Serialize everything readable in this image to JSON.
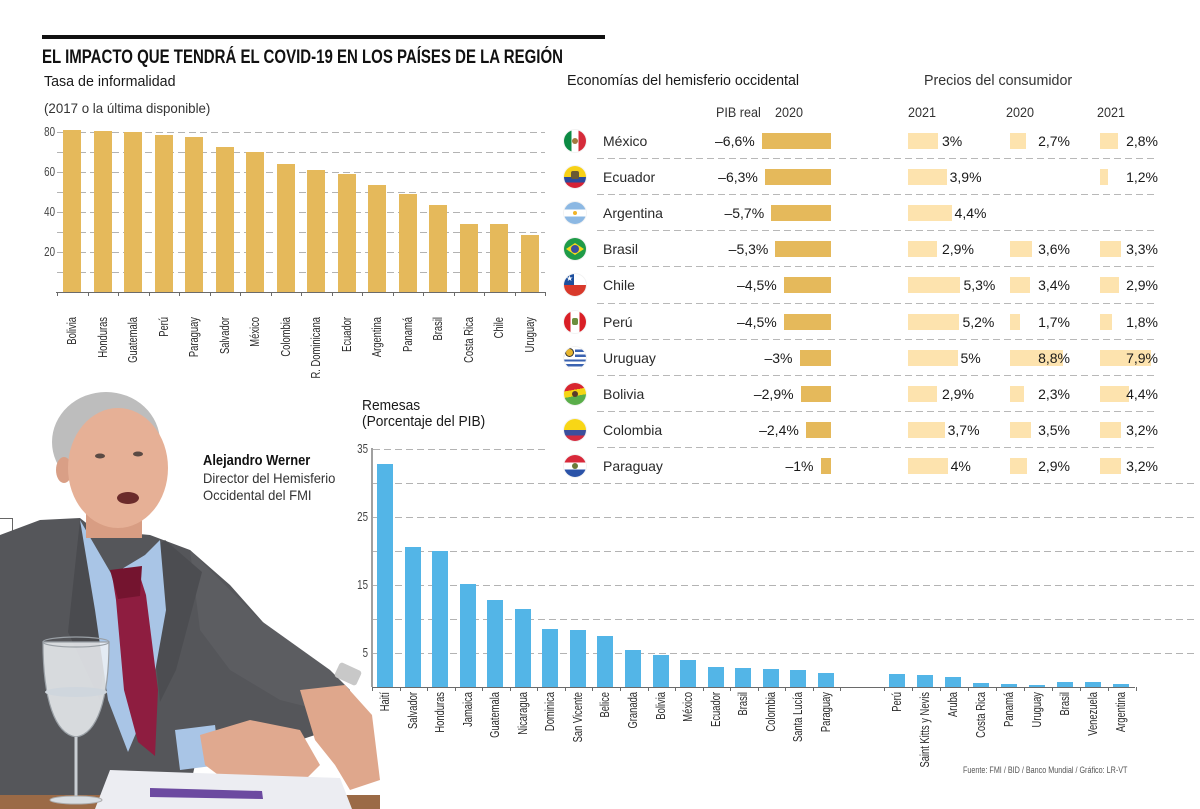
{
  "header": {
    "title": "EL IMPACTO QUE TENDRÁ EL COVID-19 EN LOS PAÍSES DE LA REGIÓN"
  },
  "person": {
    "name": "Alejandro Werner",
    "role_line1": "Director del Hemisferio",
    "role_line2": "Occidental del FMI"
  },
  "source": "Fuente: FMI / BID / Banco Mundial  / Gráfico: LR-VT",
  "colors": {
    "informality_bar": "#E5B95B",
    "remittance_bar": "#53B5E7",
    "gdp_bar": "#E5B95B",
    "prices_bar": "#FDE3AE",
    "axis": "#6A6A6A"
  },
  "chart_data": [
    {
      "type": "bar",
      "title": "Tasa de informalidad",
      "subtitle": "(2017 o la última disponible)",
      "xlabel": "",
      "ylabel": "",
      "categories": [
        "Bolivia",
        "Honduras",
        "Guatemala",
        "Perú",
        "Paraguay",
        "Salvador",
        "México",
        "Colombia",
        "R. Dominicana",
        "Ecuador",
        "Argentina",
        "Panamá",
        "Brasil",
        "Costa Rica",
        "Chile",
        "Uruguay"
      ],
      "values": [
        81,
        80.5,
        80,
        78.7,
        77.7,
        72.3,
        70,
        64,
        61.2,
        58.8,
        53.5,
        49.2,
        43.5,
        34,
        33.8,
        28.7
      ],
      "ylim": [
        0,
        80
      ],
      "yticks": [
        20,
        40,
        60,
        80
      ],
      "grid": true,
      "grid_step": 10
    },
    {
      "type": "bar",
      "title": "Remesas",
      "subtitle": "(Porcentaje del PIB)",
      "xlabel": "",
      "ylabel": "",
      "groups": [
        {
          "categories": [
            "Haití",
            "Salvador",
            "Honduras",
            "Jamaica",
            "Guatemala",
            "Nicaragua",
            "Dominica",
            "San Vicente",
            "Belice",
            "Granada",
            "Bolivia",
            "México",
            "Ecuador",
            "Brasil",
            "Colombia",
            "Santa Lucía",
            "Paraguay"
          ],
          "values": [
            32.8,
            20.6,
            20.0,
            15.1,
            12.8,
            11.5,
            8.6,
            8.4,
            7.5,
            5.5,
            4.7,
            4.0,
            3.0,
            2.8,
            2.7,
            2.5,
            2.0
          ]
        },
        {
          "categories": [
            "Perú",
            "Saint Kitts y Nevis",
            "Aruba",
            "Costa Rica",
            "Panamá",
            "Uruguay",
            "Brasil",
            "Venezuela",
            "Argentina"
          ],
          "values": [
            1.9,
            1.7,
            1.4,
            0.6,
            0.5,
            0.3,
            0.8,
            0.7,
            0.5
          ]
        }
      ],
      "ylim": [
        0,
        35
      ],
      "yticks": [
        5,
        15,
        25,
        35
      ],
      "grid": true,
      "grid_step": 5
    },
    {
      "type": "table",
      "title": "Economías del hemisferio occidental",
      "prices_title": "Precios del consumidor",
      "columns": [
        {
          "label": "PIB real",
          "year": "2020"
        },
        {
          "label": "",
          "year": "2021"
        },
        {
          "label": "",
          "year": "2020"
        },
        {
          "label": "",
          "year": "2021"
        }
      ],
      "rows": [
        {
          "country": "México",
          "flag": "mexico",
          "values": [
            -6.6,
            3.0,
            2.7,
            2.8
          ],
          "labels": [
            "–6,6%",
            "3%",
            "2,7%",
            "2,8%"
          ]
        },
        {
          "country": "Ecuador",
          "flag": "ecuador",
          "values": [
            -6.3,
            3.9,
            null,
            1.2
          ],
          "labels": [
            "–6,3%",
            "3,9%",
            null,
            "1,2%"
          ]
        },
        {
          "country": "Argentina",
          "flag": "argentina",
          "values": [
            -5.7,
            4.4,
            null,
            null
          ],
          "labels": [
            "–5,7%",
            "4,4%",
            null,
            null
          ]
        },
        {
          "country": "Brasil",
          "flag": "brasil",
          "values": [
            -5.3,
            2.9,
            3.6,
            3.3
          ],
          "labels": [
            "–5,3%",
            "2,9%",
            "3,6%",
            "3,3%"
          ]
        },
        {
          "country": "Chile",
          "flag": "chile",
          "values": [
            -4.5,
            5.3,
            3.4,
            2.9
          ],
          "labels": [
            "–4,5%",
            "5,3%",
            "3,4%",
            "2,9%"
          ]
        },
        {
          "country": "Perú",
          "flag": "peru",
          "values": [
            -4.5,
            5.2,
            1.7,
            1.8
          ],
          "labels": [
            "–4,5%",
            "5,2%",
            "1,7%",
            "1,8%"
          ]
        },
        {
          "country": "Uruguay",
          "flag": "uruguay",
          "values": [
            -3.0,
            5.0,
            8.8,
            7.9
          ],
          "labels": [
            "–3%",
            "5%",
            "8,8%",
            "7,9%"
          ]
        },
        {
          "country": "Bolivia",
          "flag": "bolivia",
          "values": [
            -2.9,
            2.9,
            2.3,
            4.4
          ],
          "labels": [
            "–2,9%",
            "2,9%",
            "2,3%",
            "4,4%"
          ]
        },
        {
          "country": "Colombia",
          "flag": "colombia",
          "values": [
            -2.4,
            3.7,
            3.5,
            3.2
          ],
          "labels": [
            "–2,4%",
            "3,7%",
            "3,5%",
            "3,2%"
          ]
        },
        {
          "country": "Paraguay",
          "flag": "paraguay",
          "values": [
            -1.0,
            4.0,
            2.9,
            3.2
          ],
          "labels": [
            "–1%",
            "4%",
            "2,9%",
            "3,2%"
          ]
        }
      ]
    }
  ]
}
